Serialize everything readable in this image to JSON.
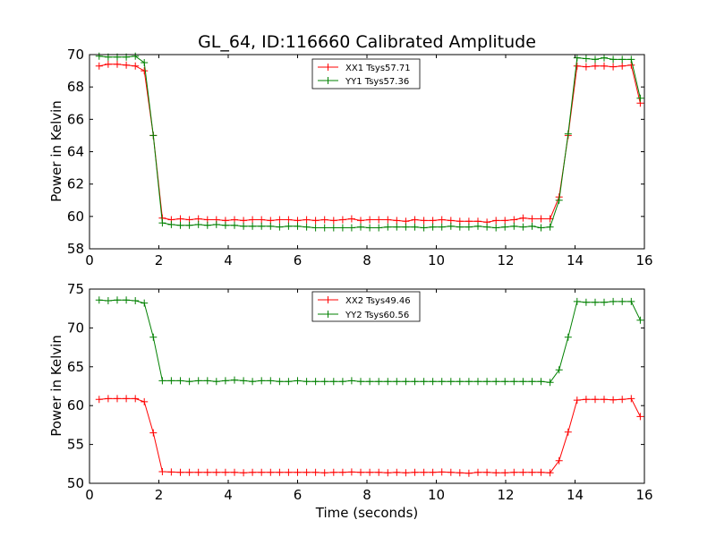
{
  "chart_data": [
    {
      "type": "line",
      "title": "GL_64, ID:116660 Calibrated Amplitude",
      "xlabel": "",
      "ylabel": "Power in Kelvin",
      "xlim": [
        0,
        16
      ],
      "ylim": [
        58,
        70
      ],
      "xticks": [
        "0",
        "2",
        "4",
        "6",
        "8",
        "10",
        "12",
        "14",
        "16"
      ],
      "yticks": [
        "58",
        "60",
        "62",
        "64",
        "66",
        "68",
        "70"
      ],
      "grid": false,
      "legend_position": "top-center",
      "x": [
        0.28,
        0.54,
        0.8,
        1.06,
        1.32,
        1.58,
        1.84,
        2.1,
        2.36,
        2.62,
        2.88,
        3.14,
        3.4,
        3.66,
        3.92,
        4.18,
        4.44,
        4.7,
        4.96,
        5.22,
        5.48,
        5.74,
        6.0,
        6.26,
        6.52,
        6.78,
        7.04,
        7.3,
        7.56,
        7.82,
        8.08,
        8.34,
        8.6,
        8.86,
        9.12,
        9.38,
        9.64,
        9.9,
        10.16,
        10.42,
        10.68,
        10.94,
        11.2,
        11.46,
        11.72,
        11.98,
        12.24,
        12.5,
        12.76,
        13.02,
        13.28,
        13.54,
        13.8,
        14.06,
        14.32,
        14.58,
        14.84,
        15.1,
        15.36,
        15.62,
        15.88
      ],
      "series": [
        {
          "name": "XX1 Tsys57.71",
          "color": "#ff0000",
          "values": [
            69.3,
            69.4,
            69.4,
            69.35,
            69.3,
            69.0,
            65.0,
            59.9,
            59.8,
            59.85,
            59.8,
            59.85,
            59.8,
            59.8,
            59.75,
            59.8,
            59.75,
            59.8,
            59.8,
            59.75,
            59.8,
            59.8,
            59.75,
            59.8,
            59.75,
            59.8,
            59.75,
            59.8,
            59.85,
            59.75,
            59.8,
            59.8,
            59.8,
            59.75,
            59.7,
            59.8,
            59.75,
            59.75,
            59.8,
            59.75,
            59.7,
            59.7,
            59.7,
            59.65,
            59.75,
            59.75,
            59.8,
            59.9,
            59.85,
            59.85,
            59.85,
            61.2,
            65.0,
            69.3,
            69.25,
            69.3,
            69.3,
            69.25,
            69.3,
            69.35,
            67.0
          ]
        },
        {
          "name": "YY1 Tsys57.36",
          "color": "#008000",
          "values": [
            69.9,
            69.85,
            69.85,
            69.85,
            69.9,
            69.5,
            65.0,
            59.6,
            59.5,
            59.45,
            59.45,
            59.5,
            59.45,
            59.5,
            59.45,
            59.45,
            59.4,
            59.4,
            59.4,
            59.4,
            59.35,
            59.4,
            59.4,
            59.35,
            59.3,
            59.3,
            59.3,
            59.3,
            59.3,
            59.35,
            59.3,
            59.3,
            59.35,
            59.35,
            59.35,
            59.35,
            59.3,
            59.35,
            59.35,
            59.4,
            59.35,
            59.35,
            59.4,
            59.35,
            59.3,
            59.35,
            59.4,
            59.35,
            59.4,
            59.3,
            59.35,
            61.0,
            65.1,
            69.8,
            69.75,
            69.7,
            69.8,
            69.7,
            69.7,
            69.7,
            67.3
          ]
        }
      ]
    },
    {
      "type": "line",
      "title": "",
      "xlabel": "Time (seconds)",
      "ylabel": "Power in Kelvin",
      "xlim": [
        0,
        16
      ],
      "ylim": [
        50,
        75
      ],
      "xticks": [
        "0",
        "2",
        "4",
        "6",
        "8",
        "10",
        "12",
        "14",
        "16"
      ],
      "yticks": [
        "50",
        "55",
        "60",
        "65",
        "70",
        "75"
      ],
      "grid": false,
      "legend_position": "top-center",
      "x": [
        0.28,
        0.54,
        0.8,
        1.06,
        1.32,
        1.58,
        1.84,
        2.1,
        2.36,
        2.62,
        2.88,
        3.14,
        3.4,
        3.66,
        3.92,
        4.18,
        4.44,
        4.7,
        4.96,
        5.22,
        5.48,
        5.74,
        6.0,
        6.26,
        6.52,
        6.78,
        7.04,
        7.3,
        7.56,
        7.82,
        8.08,
        8.34,
        8.6,
        8.86,
        9.12,
        9.38,
        9.64,
        9.9,
        10.16,
        10.42,
        10.68,
        10.94,
        11.2,
        11.46,
        11.72,
        11.98,
        12.24,
        12.5,
        12.76,
        13.02,
        13.28,
        13.54,
        13.8,
        14.06,
        14.32,
        14.58,
        14.84,
        15.1,
        15.36,
        15.62,
        15.88
      ],
      "series": [
        {
          "name": "XX2 Tsys49.46",
          "color": "#ff0000",
          "values": [
            60.8,
            60.9,
            60.9,
            60.9,
            60.9,
            60.5,
            56.5,
            51.5,
            51.45,
            51.4,
            51.4,
            51.4,
            51.4,
            51.4,
            51.4,
            51.4,
            51.35,
            51.4,
            51.4,
            51.4,
            51.4,
            51.4,
            51.4,
            51.4,
            51.4,
            51.35,
            51.4,
            51.4,
            51.45,
            51.4,
            51.4,
            51.4,
            51.35,
            51.4,
            51.35,
            51.4,
            51.4,
            51.4,
            51.45,
            51.4,
            51.35,
            51.3,
            51.4,
            51.4,
            51.35,
            51.35,
            51.4,
            51.4,
            51.4,
            51.4,
            51.35,
            52.9,
            56.6,
            60.7,
            60.8,
            60.8,
            60.8,
            60.75,
            60.8,
            60.9,
            58.6
          ]
        },
        {
          "name": "YY2 Tsys60.56",
          "color": "#008000",
          "values": [
            73.6,
            73.5,
            73.6,
            73.6,
            73.5,
            73.2,
            68.8,
            63.2,
            63.2,
            63.2,
            63.1,
            63.2,
            63.2,
            63.1,
            63.2,
            63.3,
            63.2,
            63.1,
            63.2,
            63.2,
            63.1,
            63.1,
            63.2,
            63.1,
            63.1,
            63.1,
            63.1,
            63.1,
            63.2,
            63.1,
            63.1,
            63.1,
            63.1,
            63.1,
            63.1,
            63.1,
            63.1,
            63.1,
            63.1,
            63.1,
            63.1,
            63.1,
            63.1,
            63.1,
            63.1,
            63.1,
            63.1,
            63.1,
            63.1,
            63.1,
            63.0,
            64.6,
            68.8,
            73.4,
            73.3,
            73.3,
            73.3,
            73.4,
            73.4,
            73.4,
            71.0
          ]
        }
      ]
    }
  ]
}
